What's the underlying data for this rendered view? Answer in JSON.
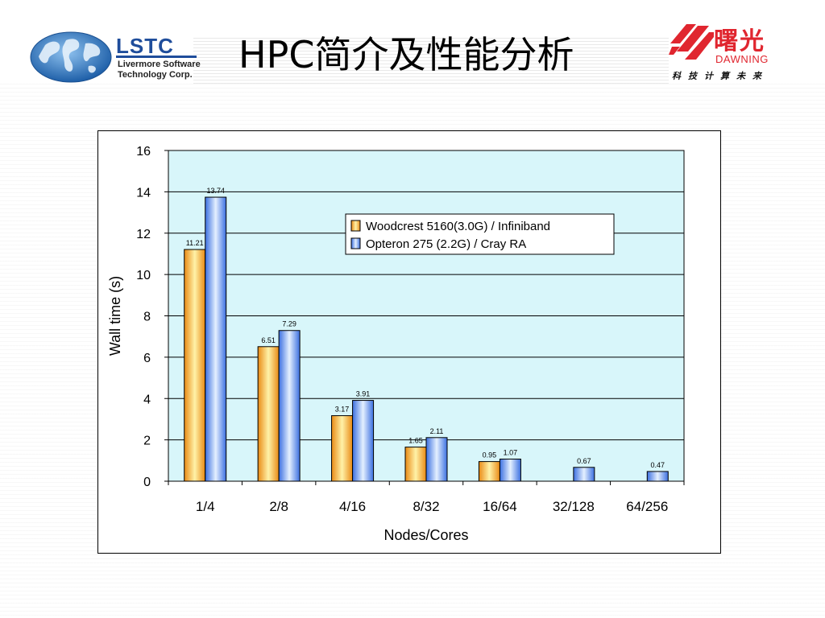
{
  "slide": {
    "title": "HPC简介及性能分析"
  },
  "logos": {
    "lstc": {
      "name": "LSTC",
      "subtitle_line1": "Livermore Software",
      "subtitle_line2": "Technology Corp."
    },
    "dawning": {
      "chinese_name": "曙光",
      "english_name": "DAWNING",
      "tagline": "科技计算未来",
      "brand_color": "#e0262f"
    }
  },
  "colors": {
    "plot_background": "#d8f6fa",
    "series_1": "#f7a33a",
    "series_2": "#5c8ff0"
  },
  "chart_data": {
    "type": "bar",
    "categories": [
      "1/4",
      "2/8",
      "4/16",
      "8/32",
      "16/64",
      "32/128",
      "64/256"
    ],
    "series": [
      {
        "name": "Woodcrest 5160(3.0G) / Infiniband",
        "values": [
          11.21,
          6.51,
          3.17,
          1.65,
          0.95,
          null,
          null
        ]
      },
      {
        "name": "Opteron 275 (2.2G) / Cray RA",
        "values": [
          13.74,
          7.29,
          3.91,
          2.11,
          1.07,
          0.67,
          0.47
        ]
      }
    ],
    "title": "",
    "xlabel": "Nodes/Cores",
    "ylabel": "Wall time (s)",
    "ylim": [
      0,
      16
    ],
    "yticks": [
      0,
      2,
      4,
      6,
      8,
      10,
      12,
      14,
      16
    ],
    "grid": true,
    "legend_position": "top-right"
  }
}
